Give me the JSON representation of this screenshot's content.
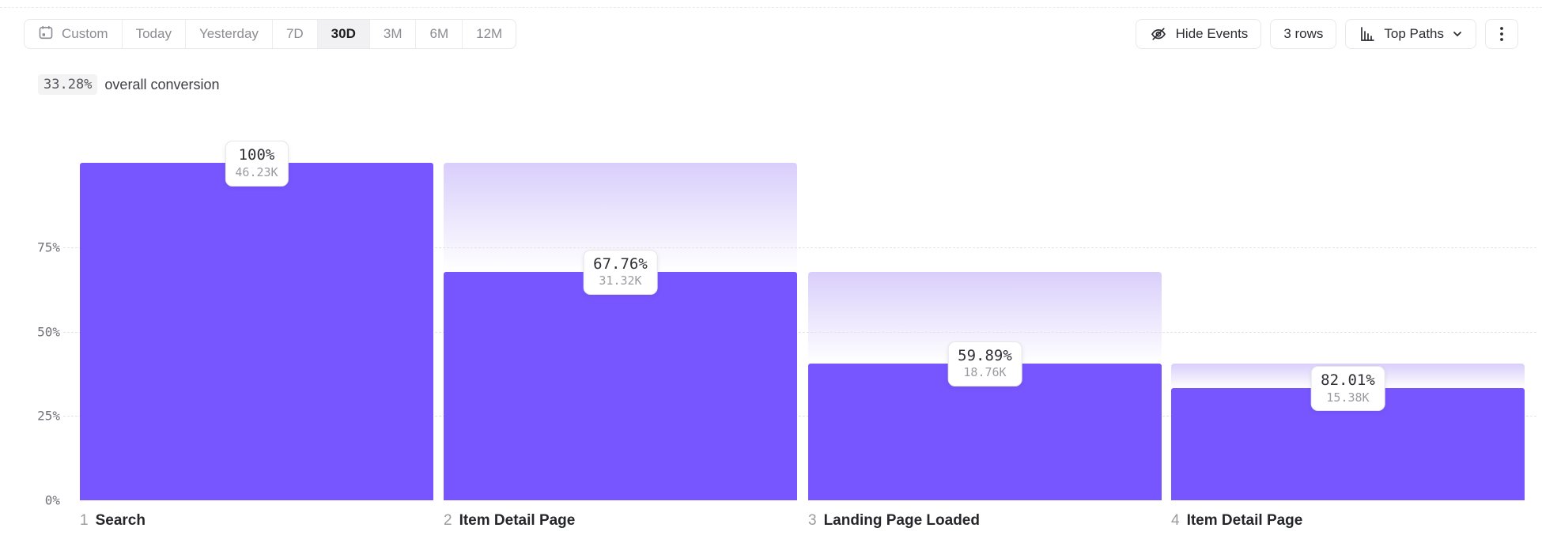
{
  "toolbar": {
    "date_ranges": [
      {
        "label": "Custom",
        "active": false,
        "icon": "calendar-icon"
      },
      {
        "label": "Today",
        "active": false
      },
      {
        "label": "Yesterday",
        "active": false
      },
      {
        "label": "7D",
        "active": false
      },
      {
        "label": "30D",
        "active": true
      },
      {
        "label": "3M",
        "active": false
      },
      {
        "label": "6M",
        "active": false
      },
      {
        "label": "12M",
        "active": false
      }
    ],
    "hide_events_label": "Hide Events",
    "rows_label": "3 rows",
    "view_selector_label": "Top Paths"
  },
  "summary": {
    "value": "33.28%",
    "label": "overall conversion"
  },
  "chart_data": {
    "type": "bar",
    "subtype": "funnel",
    "title": "33.28% overall conversion",
    "y_ticks": [
      "75%",
      "50%",
      "25%",
      "0%"
    ],
    "ylim": [
      0,
      100
    ],
    "grid": "dashed horizontal at 25/50/75",
    "legend": "none",
    "colors": {
      "bar": "#7856FF",
      "dropoff_gradient_top": "#D9CEFB",
      "dropoff_gradient_bottom": "#FFFFFF"
    },
    "steps": [
      {
        "index": "1",
        "name": "Search",
        "conversion_from_prev": "100%",
        "count": "46.23K",
        "pct_of_total": 100
      },
      {
        "index": "2",
        "name": "Item Detail Page",
        "conversion_from_prev": "67.76%",
        "count": "31.32K",
        "pct_of_total": 67.76
      },
      {
        "index": "3",
        "name": "Landing Page Loaded",
        "conversion_from_prev": "59.89%",
        "count": "18.76K",
        "pct_of_total": 40.58
      },
      {
        "index": "4",
        "name": "Item Detail Page",
        "conversion_from_prev": "82.01%",
        "count": "15.38K",
        "pct_of_total": 33.28
      }
    ]
  }
}
